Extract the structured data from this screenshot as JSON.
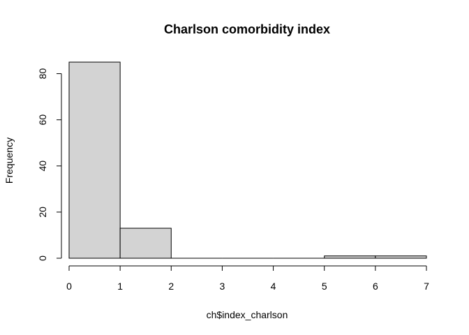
{
  "chart_data": {
    "type": "bar",
    "subtype": "histogram",
    "title": "Charlson comorbidity index",
    "xlabel": "ch$index_charlson",
    "ylabel": "Frequency",
    "bins": [
      {
        "start": 0,
        "end": 1,
        "count": 85
      },
      {
        "start": 1,
        "end": 2,
        "count": 13
      },
      {
        "start": 2,
        "end": 3,
        "count": 0
      },
      {
        "start": 3,
        "end": 4,
        "count": 0
      },
      {
        "start": 4,
        "end": 5,
        "count": 0
      },
      {
        "start": 5,
        "end": 6,
        "count": 1
      },
      {
        "start": 6,
        "end": 7,
        "count": 1
      }
    ],
    "xlim": [
      0,
      7
    ],
    "ylim": [
      0,
      85
    ],
    "x_ticks": [
      "0",
      "1",
      "2",
      "3",
      "4",
      "5",
      "6",
      "7"
    ],
    "y_ticks": [
      "0",
      "20",
      "40",
      "60",
      "80"
    ],
    "bar_color": "#d3d3d3",
    "grid": false,
    "legend": "none"
  }
}
